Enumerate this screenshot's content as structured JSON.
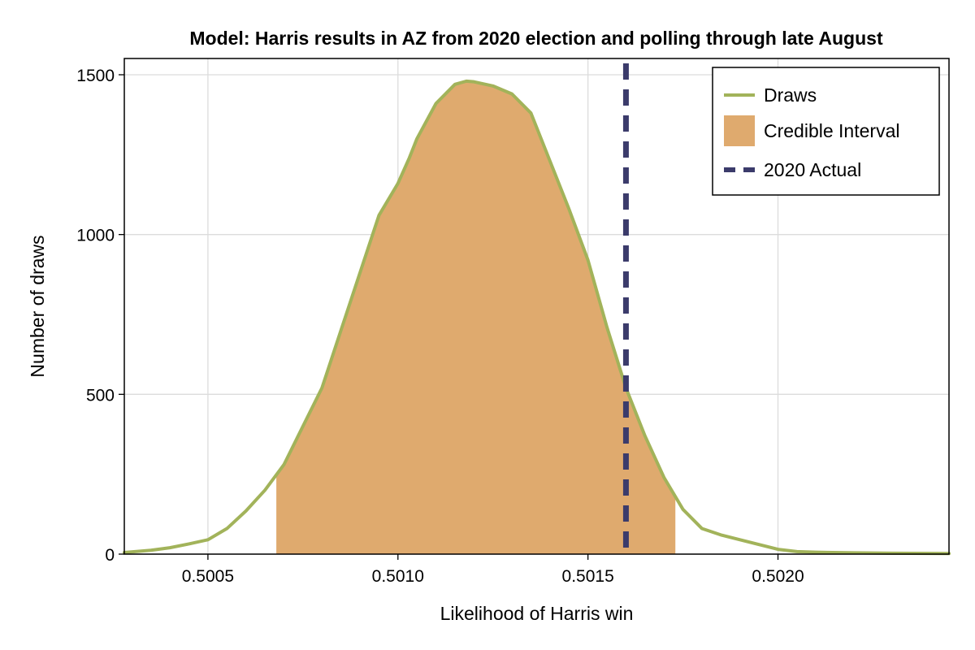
{
  "chart_data": {
    "type": "area",
    "title": "Model: Harris results in AZ from 2020 election and polling through late August",
    "xlabel": "Likelihood of Harris win",
    "ylabel": "Number of draws",
    "xlim": [
      0.50028,
      0.50245
    ],
    "ylim": [
      0,
      1500
    ],
    "x_ticks": [
      0.5005,
      0.501,
      0.5015,
      0.502
    ],
    "x_tick_labels": [
      "0.5005",
      "0.5010",
      "0.5015",
      "0.5020"
    ],
    "y_ticks": [
      0,
      500,
      1000,
      1500
    ],
    "y_tick_labels": [
      "0",
      "500",
      "1000",
      "1500"
    ],
    "grid": true,
    "legend_position": "top-right",
    "series": [
      {
        "name": "Draws",
        "kind": "line",
        "color": "#a2b35a",
        "x": [
          0.50028,
          0.50035,
          0.5004,
          0.50045,
          0.5005,
          0.50055,
          0.5006,
          0.50065,
          0.5007,
          0.50075,
          0.5008,
          0.50085,
          0.5009,
          0.50095,
          0.501,
          0.50103,
          0.50105,
          0.5011,
          0.50115,
          0.50118,
          0.5012,
          0.50125,
          0.5013,
          0.50135,
          0.5014,
          0.50145,
          0.5015,
          0.50155,
          0.5016,
          0.50165,
          0.5017,
          0.50175,
          0.5018,
          0.50185,
          0.5019,
          0.50195,
          0.502,
          0.50205,
          0.5021,
          0.5022,
          0.5023,
          0.50245
        ],
        "y": [
          5,
          12,
          20,
          32,
          45,
          80,
          135,
          200,
          280,
          400,
          520,
          700,
          880,
          1060,
          1160,
          1240,
          1300,
          1410,
          1470,
          1480,
          1478,
          1465,
          1440,
          1380,
          1230,
          1080,
          920,
          710,
          520,
          370,
          240,
          140,
          80,
          60,
          45,
          30,
          15,
          8,
          6,
          4,
          3,
          2
        ]
      },
      {
        "name": "Credible Interval",
        "kind": "band",
        "color": "#dfaa6e",
        "x_min": 0.50068,
        "x_max": 0.50173
      },
      {
        "name": "2020 Actual",
        "kind": "vline",
        "color": "#3b3b6b",
        "x": 0.5016
      }
    ]
  }
}
